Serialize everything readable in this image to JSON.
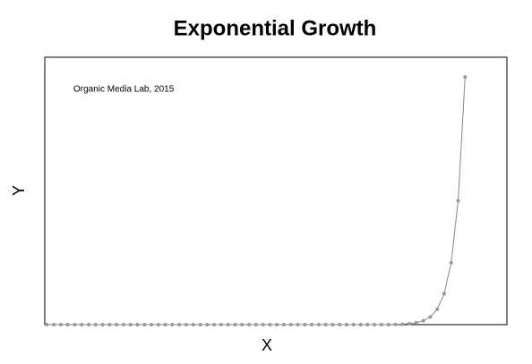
{
  "chart_data": {
    "type": "line",
    "title": "Exponential Growth",
    "annotation": "Organic Media Lab, 2015",
    "xlabel": "X",
    "ylabel": "Y",
    "x": [
      0,
      1,
      2,
      3,
      4,
      5,
      6,
      7,
      8,
      9,
      10,
      11,
      12,
      13,
      14,
      15,
      16,
      17,
      18,
      19,
      20,
      21,
      22,
      23,
      24,
      25,
      26,
      27,
      28,
      29,
      30,
      31,
      32,
      33,
      34,
      35,
      36,
      37,
      38,
      39,
      40,
      41,
      42,
      43,
      44,
      45,
      46,
      47,
      48,
      49,
      50,
      51,
      52,
      53,
      54,
      55,
      56,
      57,
      58,
      59,
      60
    ],
    "series": [
      {
        "name": "Y",
        "color": "#999999",
        "values": [
          0,
          0,
          0,
          0,
          0,
          0,
          0,
          0,
          0,
          0,
          0,
          0,
          0,
          0,
          0,
          0,
          0,
          0,
          0,
          0,
          0,
          0,
          0,
          0,
          0,
          0,
          0,
          0,
          0,
          0,
          0,
          0,
          0,
          0,
          0,
          0,
          0,
          0,
          0,
          0,
          0,
          0,
          0,
          0,
          0,
          0,
          0,
          0,
          0,
          0,
          0.1,
          0.2,
          0.39,
          0.78,
          1.56,
          3.13,
          6.25,
          12.5,
          25,
          50,
          100
        ]
      }
    ],
    "xlim": [
      -0.3,
      66
    ],
    "ylim": [
      0,
      108
    ]
  }
}
